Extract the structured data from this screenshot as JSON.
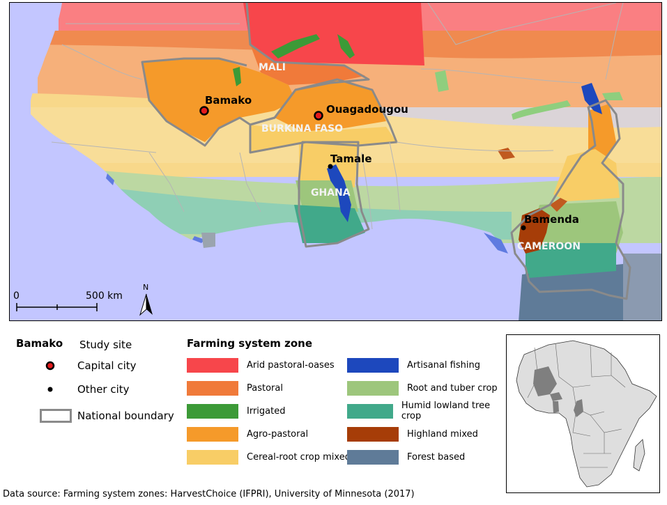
{
  "map": {
    "cities": {
      "bamako": "Bamako",
      "ouagadougou": "Ouagadougou",
      "tamale": "Tamale",
      "bamenda": "Bamenda"
    },
    "countries": {
      "mali": "MALI",
      "burkina_faso": "BURKINA FASO",
      "ghana": "GHANA",
      "cameroon": "CAMEROON"
    },
    "scale_bar": {
      "start": "0",
      "end": "500 km"
    },
    "north_arrow": "N"
  },
  "legend_left": {
    "study_site_label": "Bamako",
    "study_site_text": "Study site",
    "capital_city": "Capital city",
    "other_city": "Other city",
    "national_boundary": "National boundary"
  },
  "legend_zones": {
    "title": "Farming system zone",
    "items": [
      {
        "label": "Arid pastoral-oases",
        "color": "#f7464b"
      },
      {
        "label": "Pastoral",
        "color": "#f07a3a"
      },
      {
        "label": "Irrigated",
        "color": "#3c9a37"
      },
      {
        "label": "Agro-pastoral",
        "color": "#f59a2a"
      },
      {
        "label": "Cereal-root crop mixed",
        "color": "#f8cd66"
      },
      {
        "label": "Artisanal fishing",
        "color": "#1d48bd"
      },
      {
        "label": "Root and tuber crop",
        "color": "#9dc67c"
      },
      {
        "label": "Humid lowland tree crop",
        "color": "#41a98a"
      },
      {
        "label": "Highland mixed",
        "color": "#a63d08"
      },
      {
        "label": "Forest based",
        "color": "#5f7b98"
      }
    ]
  },
  "source": "Data source: Farming system zones: HarvestChoice (IFPRI), University of Minnesota (2017)"
}
